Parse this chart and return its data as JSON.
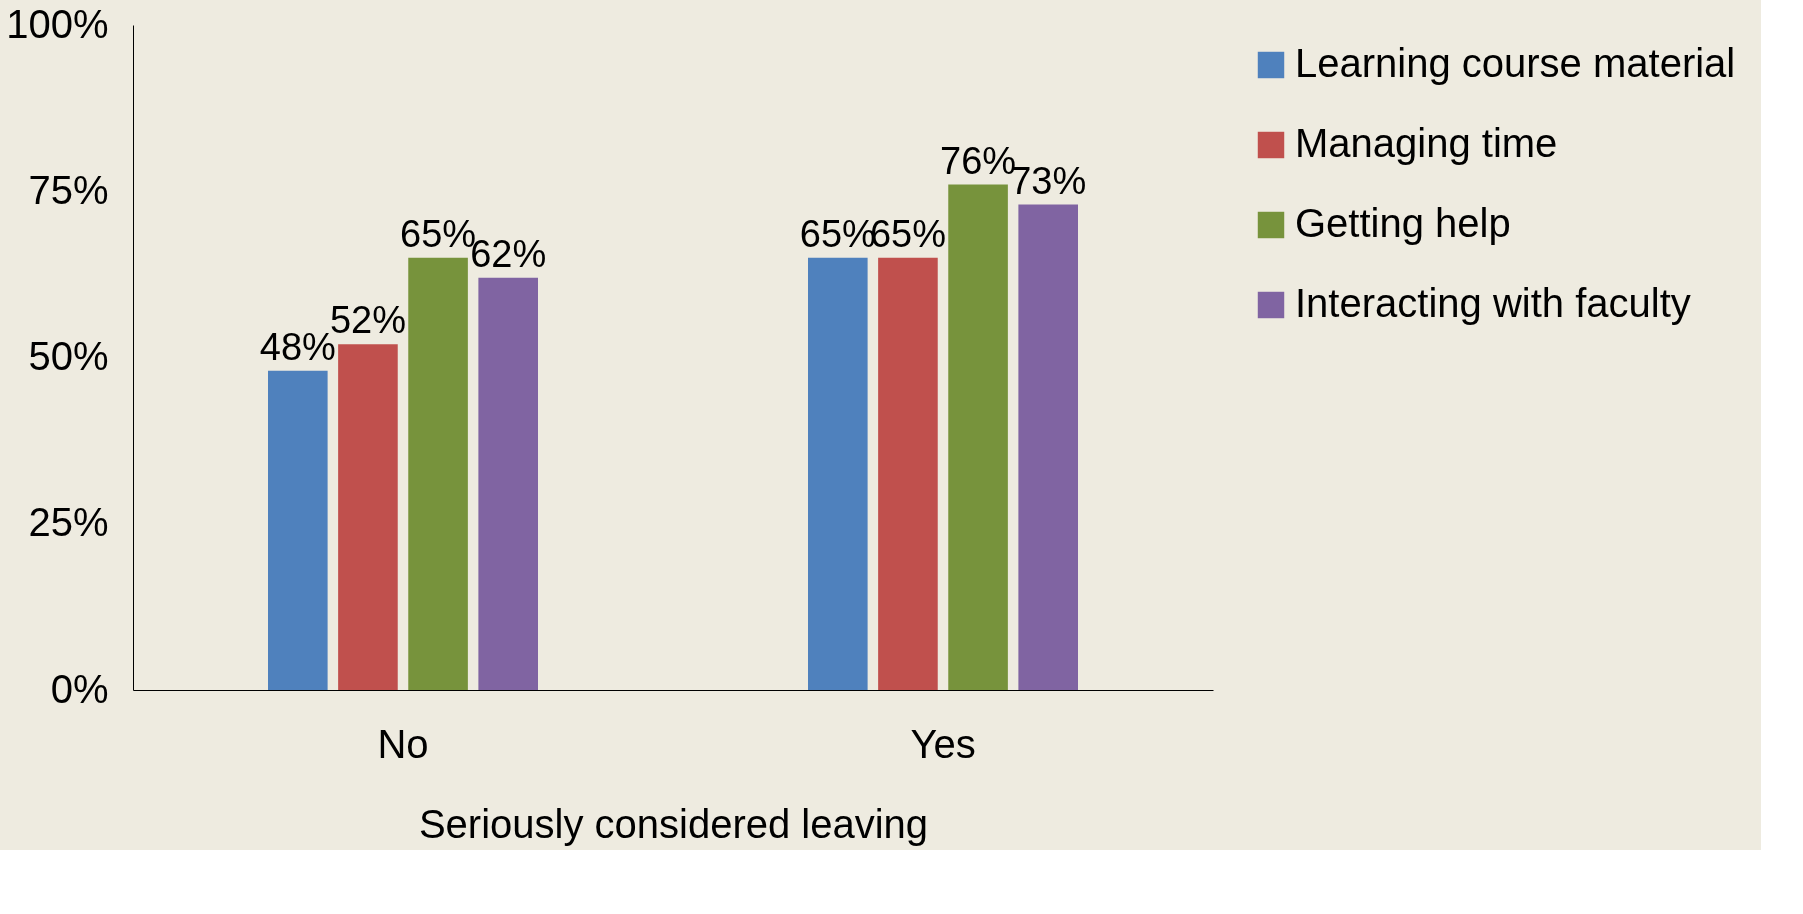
{
  "chart_data": {
    "type": "bar",
    "xlabel": "Seriously considered leaving",
    "categories": [
      "No",
      "Yes"
    ],
    "series": [
      {
        "name": "Learning course material",
        "color": "#4f81bd",
        "values": [
          48,
          65
        ],
        "value_labels": [
          "48%",
          "65%"
        ]
      },
      {
        "name": "Managing time",
        "color": "#c0504d",
        "values": [
          52,
          65
        ],
        "value_labels": [
          "52%",
          "65%"
        ]
      },
      {
        "name": "Getting help",
        "color": "#77933c",
        "values": [
          65,
          76
        ],
        "value_labels": [
          "65%",
          "76%"
        ]
      },
      {
        "name": "Interacting with faculty",
        "color": "#8064a2",
        "values": [
          62,
          73
        ],
        "value_labels": [
          "62%",
          "73%"
        ]
      }
    ],
    "ylim": [
      0,
      100
    ],
    "yticks": [
      {
        "value": 0,
        "label": "0%"
      },
      {
        "value": 25,
        "label": "25%"
      },
      {
        "value": 50,
        "label": "50%"
      },
      {
        "value": 75,
        "label": "75%"
      },
      {
        "value": 100,
        "label": "100%"
      }
    ],
    "grid": false,
    "legend": "right"
  }
}
